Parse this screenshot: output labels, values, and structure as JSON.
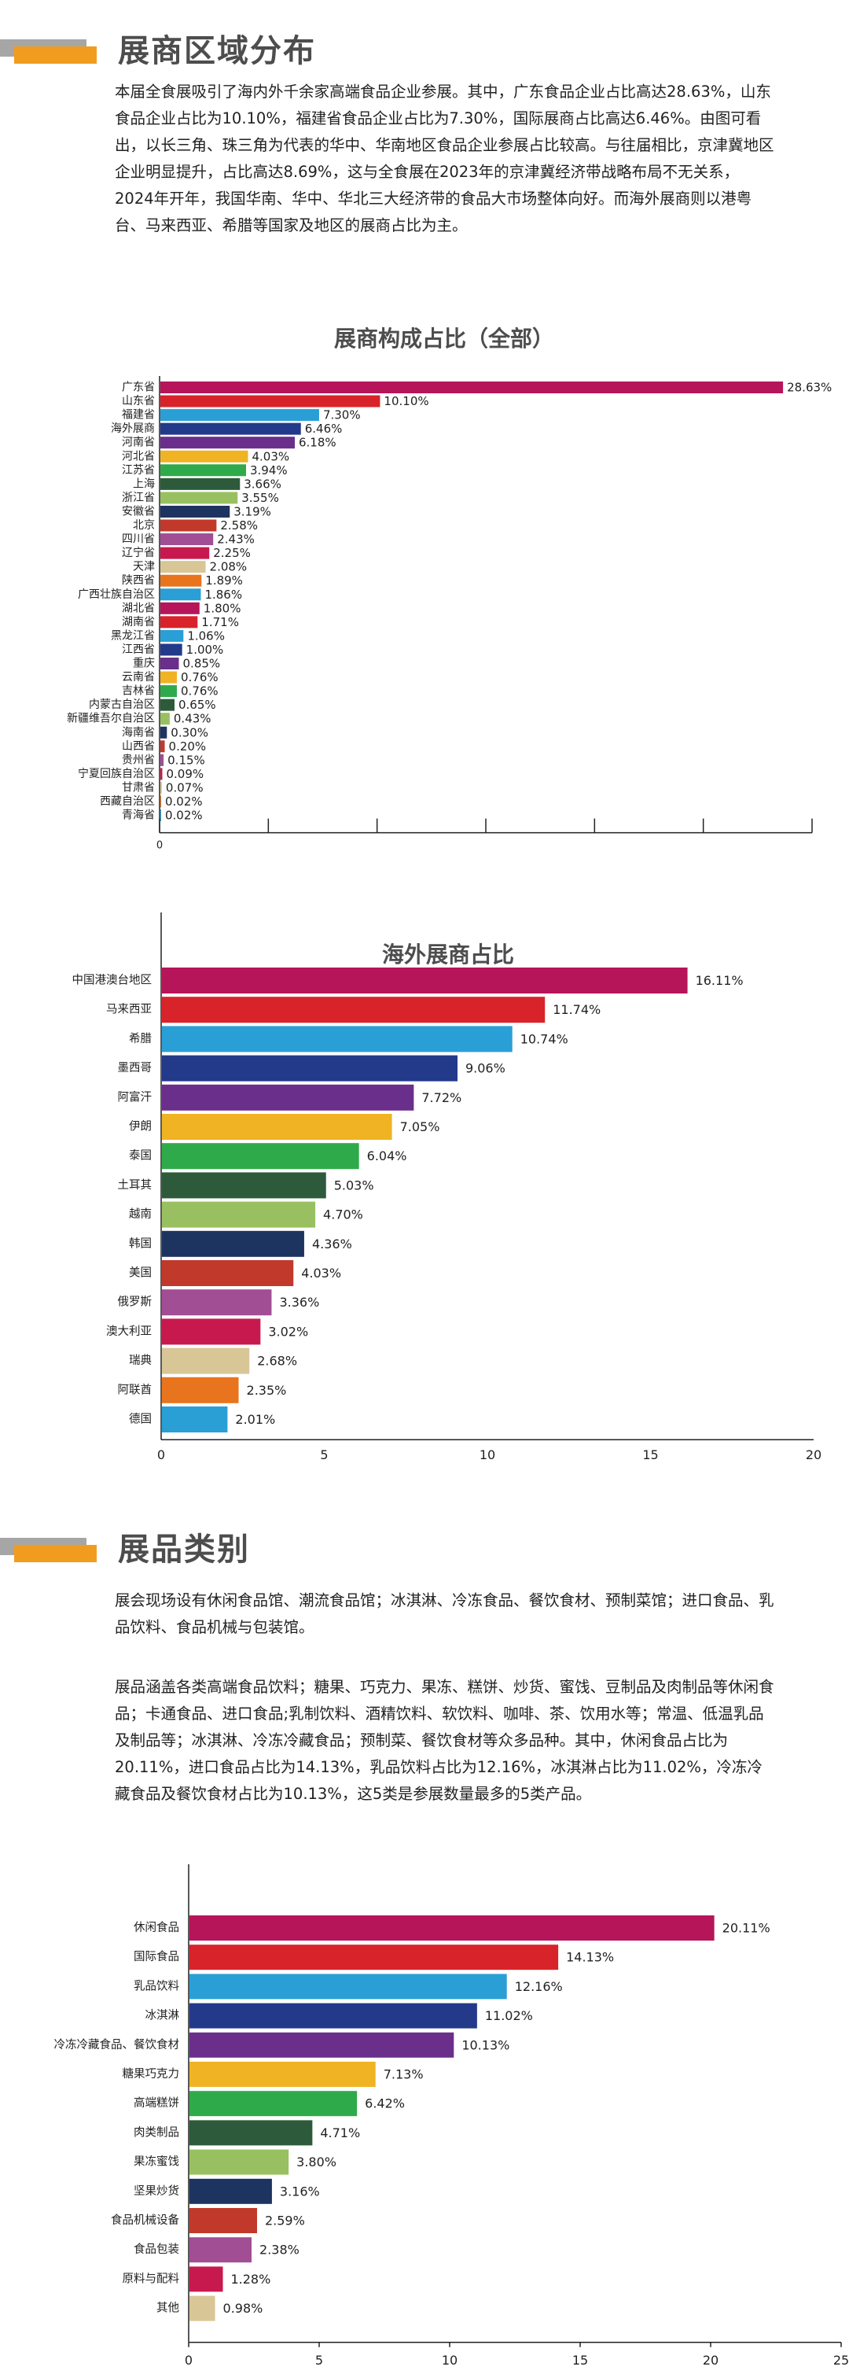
{
  "sections": {
    "exhibitors": {
      "title": "展商区域分布"
    },
    "products": {
      "title": "展品类别"
    }
  },
  "paragraphs": {
    "p1": "本届全食展吸引了海内外千余家高端食品企业参展。其中，广东食品企业占比高达28.63%，山东食品企业占比为10.10%，福建省食品企业占比为7.30%，国际展商占比高达6.46%。由图可看出，以长三角、珠三角为代表的华中、华南地区食品企业参展占比较高。与往届相比，京津冀地区企业明显提升，占比高达8.69%，这与全食展在2023年的京津冀经济带战略布局不无关系，2024年开年，我国华南、华中、华北三大经济带的食品大市场整体向好。而海外展商则以港粤台、马来西亚、希腊等国家及地区的展商占比为主。",
    "p2": "展会现场设有休闲食品馆、潮流食品馆；冰淇淋、冷冻食品、餐饮食材、预制菜馆；进口食品、乳品饮料、食品机械与包装馆。",
    "p3": "展品涵盖各类高端食品饮料；糖果、巧克力、果冻、糕饼、炒货、蜜饯、豆制品及肉制品等休闲食品；卡通食品、进口食品;乳制饮料、酒精饮料、软饮料、咖啡、茶、饮用水等；常温、低温乳品及制品等；冰淇淋、冷冻冷藏食品；预制菜、餐饮食材等众多品种。其中，休闲食品占比为20.11%，进口食品占比为14.13%，乳品饮料占比为12.16%，冰淇淋占比为11.02%，冷冻冷藏食品及餐饮食材占比为10.13%，这5类是参展数量最多的5类产品。"
  },
  "chart_data": [
    {
      "type": "bar",
      "orientation": "horizontal",
      "title": "展商构成占比（全部）",
      "unit": "%",
      "xlim": [
        0,
        30
      ],
      "categories": [
        "广东省",
        "山东省",
        "福建省",
        "海外展商",
        "河南省",
        "河北省",
        "江苏省",
        "上海",
        "浙江省",
        "安徽省",
        "北京",
        "四川省",
        "辽宁省",
        "天津",
        "陕西省",
        "广西壮族自治区",
        "湖北省",
        "湖南省",
        "黑龙江省",
        "江西省",
        "重庆",
        "云南省",
        "吉林省",
        "内蒙古自治区",
        "新疆维吾尔自治区",
        "海南省",
        "山西省",
        "贵州省",
        "宁夏回族自治区",
        "甘肃省",
        "西藏自治区",
        "青海省"
      ],
      "values": [
        28.63,
        10.1,
        7.3,
        6.46,
        6.18,
        4.03,
        3.94,
        3.66,
        3.55,
        3.19,
        2.58,
        2.43,
        2.25,
        2.08,
        1.89,
        1.86,
        1.8,
        1.71,
        1.06,
        1.0,
        0.85,
        0.76,
        0.76,
        0.65,
        0.43,
        0.3,
        0.2,
        0.15,
        0.09,
        0.07,
        0.02,
        0.02
      ],
      "labels": [
        "28.63%",
        "10.10%",
        "7.30%",
        "6.46%",
        "6.18%",
        "4.03%",
        "3.94%",
        "3.66%",
        "3.55%",
        "3.19%",
        "2.58%",
        "2.43%",
        "2.25%",
        "2.08%",
        "1.89%",
        "1.86%",
        "1.80%",
        "1.71%",
        "1.06%",
        "1.00%",
        "0.85%",
        "0.76%",
        "0.76%",
        "0.65%",
        "0.43%",
        "0.30%",
        "0.20%",
        "0.15%",
        "0.09%",
        "0.07%",
        "0.02%",
        "0.02%"
      ],
      "xticks": [
        "0"
      ]
    },
    {
      "type": "bar",
      "orientation": "horizontal",
      "title": "海外展商占比",
      "unit": "%",
      "xlim": [
        0,
        20
      ],
      "categories": [
        "中国港澳台地区",
        "马来西亚",
        "希腊",
        "墨西哥",
        "阿富汗",
        "伊朗",
        "泰国",
        "土耳其",
        "越南",
        "韩国",
        "美国",
        "俄罗斯",
        "澳大利亚",
        "瑞典",
        "阿联酋",
        "德国"
      ],
      "values": [
        16.11,
        11.74,
        10.74,
        9.06,
        7.72,
        7.05,
        6.04,
        5.03,
        4.7,
        4.36,
        4.03,
        3.36,
        3.02,
        2.68,
        2.35,
        2.01
      ],
      "labels": [
        "16.11%",
        "11.74%",
        "10.74%",
        "9.06%",
        "7.72%",
        "7.05%",
        "6.04%",
        "5.03%",
        "4.70%",
        "4.36%",
        "4.03%",
        "3.36%",
        "3.02%",
        "2.68%",
        "2.35%",
        "2.01%"
      ],
      "xticks": [
        "0",
        "5",
        "10",
        "15",
        "20"
      ]
    },
    {
      "type": "bar",
      "orientation": "horizontal",
      "title": "",
      "unit": "%",
      "xlim": [
        0,
        25
      ],
      "categories": [
        "休闲食品",
        "国际食品",
        "乳品饮料",
        "冰淇淋",
        "冷冻冷藏食品、餐饮食材",
        "糖果巧克力",
        "高端糕饼",
        "肉类制品",
        "果冻蜜饯",
        "坚果炒货",
        "食品机械设备",
        "食品包装",
        "原料与配料",
        "其他"
      ],
      "values": [
        20.11,
        14.13,
        12.16,
        11.02,
        10.13,
        7.13,
        6.42,
        4.71,
        3.8,
        3.16,
        2.59,
        2.38,
        1.28,
        0.98
      ],
      "labels": [
        "20.11%",
        "14.13%",
        "12.16%",
        "11.02%",
        "10.13%",
        "7.13%",
        "6.42%",
        "4.71%",
        "3.80%",
        "3.16%",
        "2.59%",
        "2.38%",
        "1.28%",
        "0.98%"
      ],
      "xticks": [
        "0",
        "5",
        "10",
        "15",
        "20",
        "25"
      ]
    }
  ],
  "palette": [
    "#b6155a",
    "#d9232a",
    "#2a9fd6",
    "#233a8a",
    "#6a2f8a",
    "#f0b323",
    "#2faa4a",
    "#2d5a3a",
    "#98c060",
    "#1d3360",
    "#c0392b",
    "#a24e95",
    "#c8194f",
    "#d9c696",
    "#e8741e",
    "#2a9fd6"
  ]
}
